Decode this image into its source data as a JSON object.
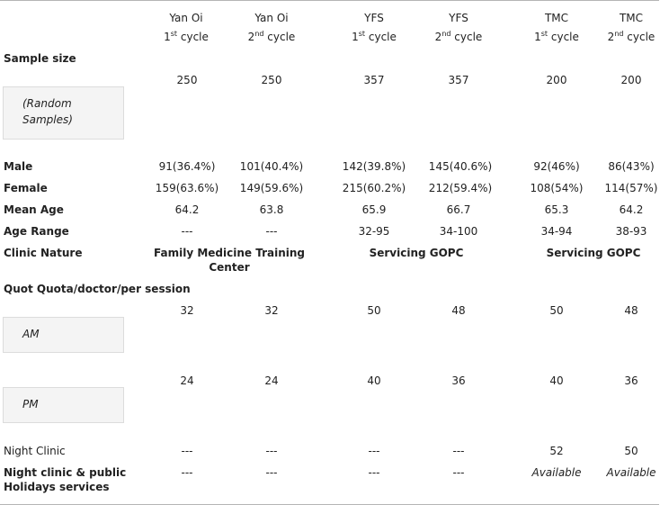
{
  "headers": [
    {
      "name": "Yan Oi",
      "cycle_num": "1",
      "cycle_sup": "st",
      "cycle_word": "cycle"
    },
    {
      "name": "Yan Oi",
      "cycle_num": "2",
      "cycle_sup": "nd",
      "cycle_word": "cycle"
    },
    {
      "name": "YFS",
      "cycle_num": "1",
      "cycle_sup": "st",
      "cycle_word": "cycle"
    },
    {
      "name": "YFS",
      "cycle_num": "2",
      "cycle_sup": "nd",
      "cycle_word": "cycle"
    },
    {
      "name": "TMC",
      "cycle_num": "1",
      "cycle_sup": "st",
      "cycle_word": "cycle"
    },
    {
      "name": "TMC",
      "cycle_num": "2",
      "cycle_sup": "nd",
      "cycle_word": "cycle"
    }
  ],
  "sample_size": {
    "label": "Sample size",
    "box_line1": "(Random",
    "box_line2": "Samples)",
    "values": [
      "250",
      "250",
      "357",
      "357",
      "200",
      "200"
    ]
  },
  "rows": [
    {
      "label": "Male",
      "values": [
        "91(36.4%)",
        "101(40.4%)",
        "142(39.8%)",
        "145(40.6%)",
        "92(46%)",
        "86(43%)"
      ]
    },
    {
      "label": "Female",
      "values": [
        "159(63.6%)",
        "149(59.6%)",
        "215(60.2%)",
        "212(59.4%)",
        "108(54%)",
        "114(57%)"
      ]
    },
    {
      "label": "Mean Age",
      "values": [
        "64.2",
        "63.8",
        "65.9",
        "66.7",
        "65.3",
        "64.2"
      ]
    },
    {
      "label": "Age Range",
      "values": [
        "---",
        "---",
        "32-95",
        "34-100",
        "34-94",
        "38-93"
      ]
    }
  ],
  "clinic_nature": {
    "label": "Clinic Nature",
    "yanoi_line1": "Family Medicine Training",
    "yanoi_line2": "Center",
    "yfs": "Servicing GOPC",
    "tmc": "Servicing GOPC"
  },
  "quota": {
    "label": "Quot Quota/doctor/per session",
    "am_label": "AM",
    "am_values": [
      "32",
      "32",
      "50",
      "48",
      "50",
      "48"
    ],
    "pm_label": "PM",
    "pm_values": [
      "24",
      "24",
      "40",
      "36",
      "40",
      "36"
    ]
  },
  "night_clinic": {
    "label": "Night Clinic",
    "values": [
      "---",
      "---",
      "---",
      "---",
      "52",
      "50"
    ]
  },
  "holiday": {
    "label_line1": "Night clinic & public",
    "label_line2": "Holidays services",
    "values": [
      "---",
      "---",
      "---",
      "---",
      "Available",
      "Available"
    ]
  }
}
